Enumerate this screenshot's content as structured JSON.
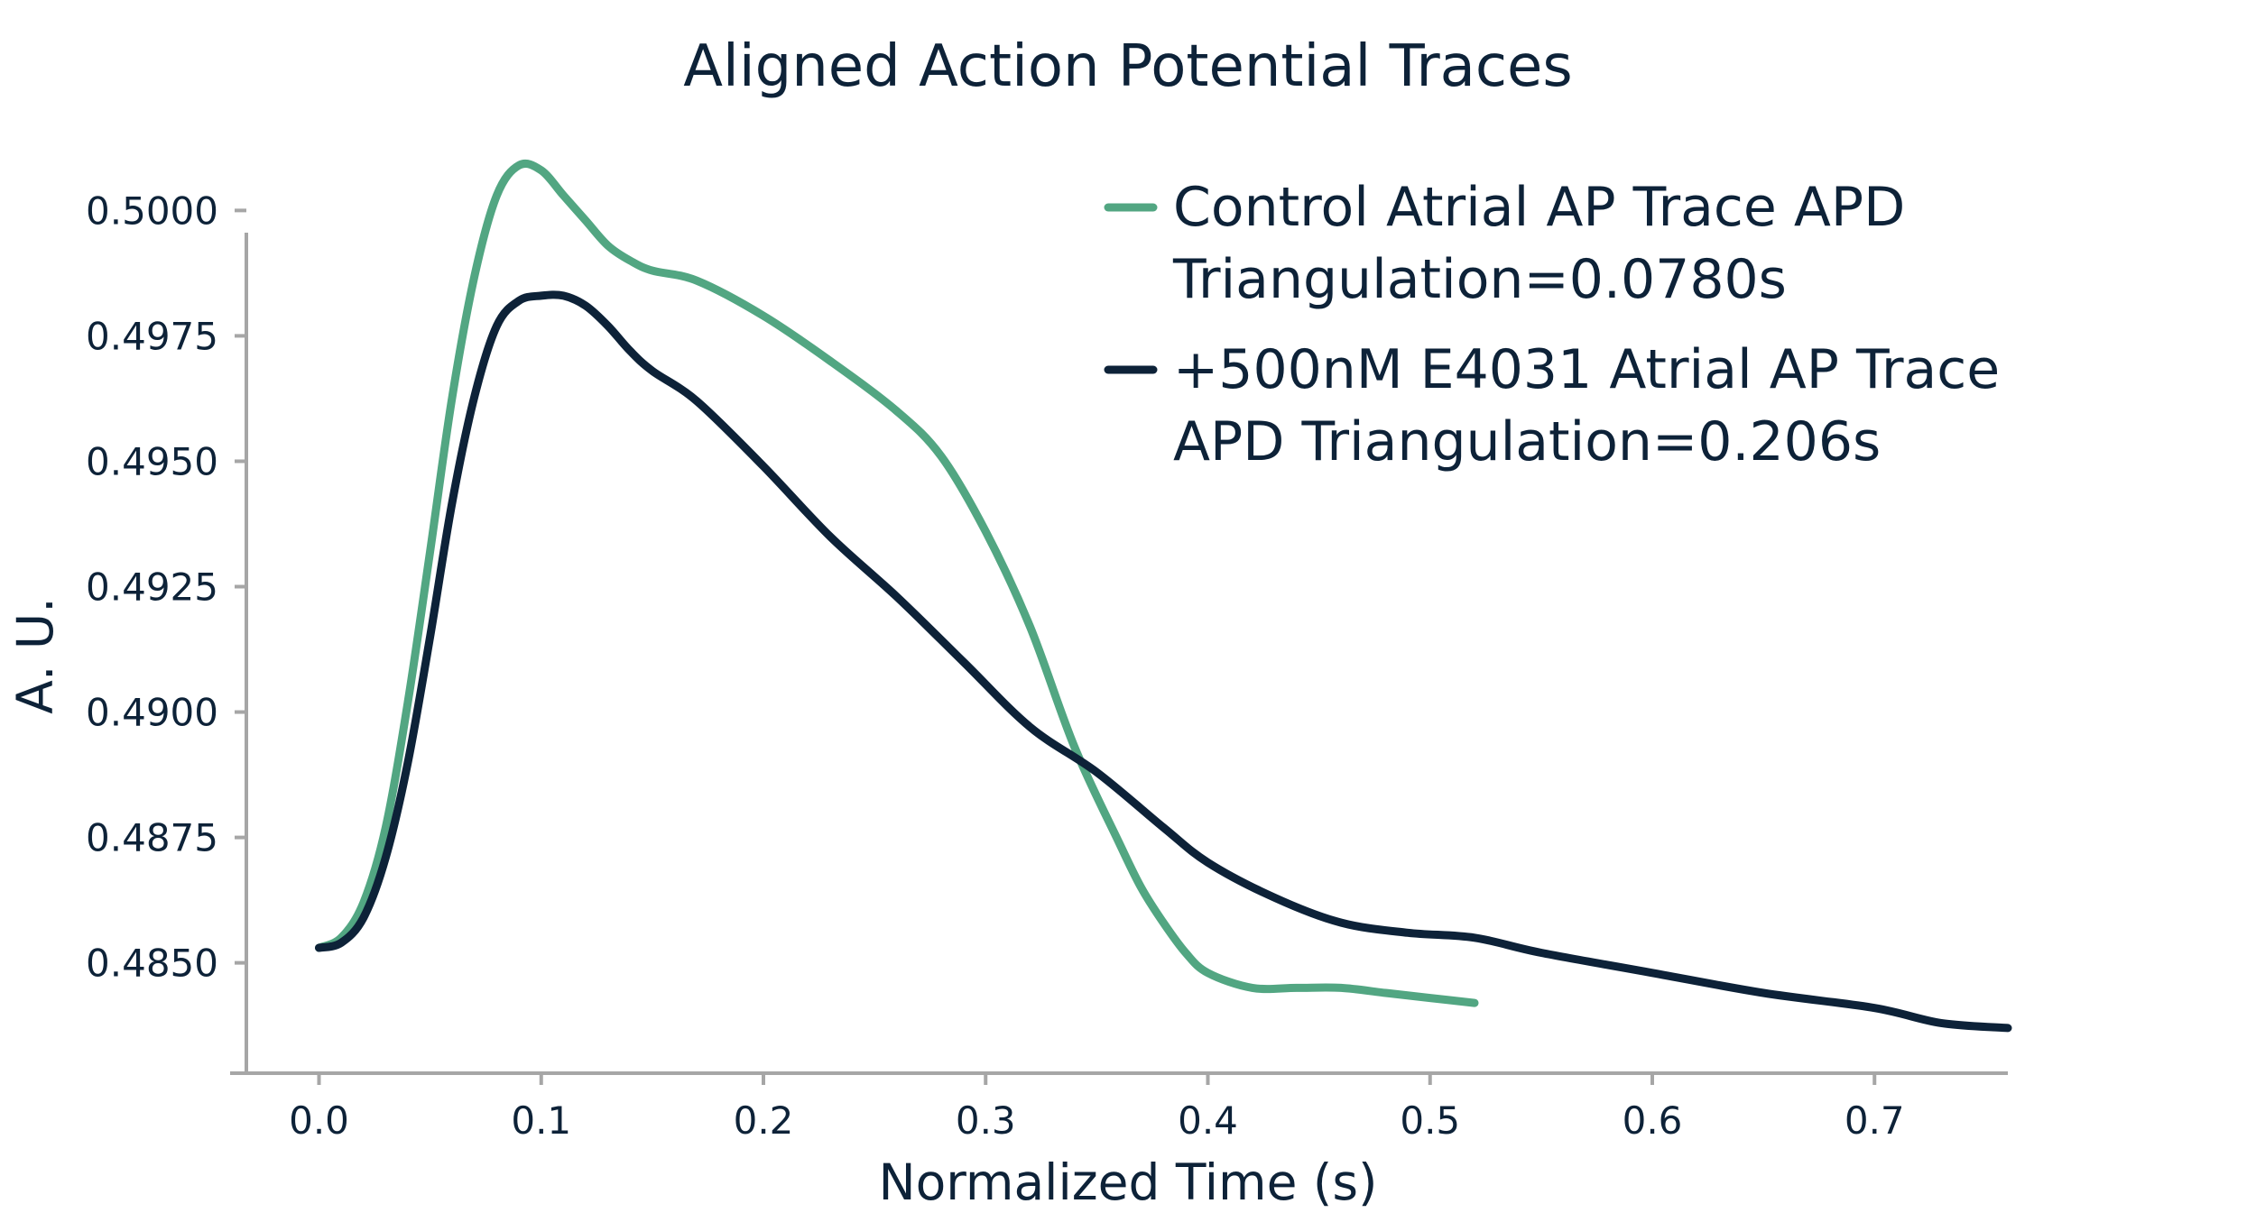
{
  "chart_data": {
    "type": "line",
    "title": "Aligned Action Potential Traces",
    "xlabel": "Normalized Time (s)",
    "ylabel": "A. U.",
    "xlim": [
      -0.04,
      0.76
    ],
    "ylim": [
      0.4828,
      0.5006
    ],
    "xticks": [
      0.0,
      0.1,
      0.2,
      0.3,
      0.4,
      0.5,
      0.6,
      0.7
    ],
    "xtick_labels": [
      "0.0",
      "0.1",
      "0.2",
      "0.3",
      "0.4",
      "0.5",
      "0.6",
      "0.7"
    ],
    "yticks": [
      0.485,
      0.4875,
      0.49,
      0.4925,
      0.495,
      0.4975,
      0.5
    ],
    "ytick_labels": [
      "0.4850",
      "0.4875",
      "0.4900",
      "0.4925",
      "0.4950",
      "0.4975",
      "0.5000"
    ],
    "legend_position": "top-right",
    "grid": false,
    "series": [
      {
        "name": "Control Atrial AP Trace APD Triangulation=0.0780s",
        "legend_lines": [
          "Control Atrial AP Trace APD",
          "Triangulation=0.0780s"
        ],
        "color": "#52a682",
        "x": [
          0.0,
          0.01,
          0.02,
          0.03,
          0.04,
          0.05,
          0.06,
          0.07,
          0.08,
          0.09,
          0.1,
          0.11,
          0.12,
          0.13,
          0.14,
          0.15,
          0.17,
          0.2,
          0.23,
          0.26,
          0.28,
          0.3,
          0.32,
          0.34,
          0.36,
          0.37,
          0.38,
          0.39,
          0.4,
          0.42,
          0.44,
          0.46,
          0.48,
          0.5,
          0.52
        ],
        "y": [
          0.4853,
          0.4855,
          0.4862,
          0.4877,
          0.4902,
          0.4932,
          0.4963,
          0.4987,
          0.5003,
          0.5009,
          0.5008,
          0.5003,
          0.4998,
          0.4993,
          0.499,
          0.4988,
          0.4986,
          0.4979,
          0.497,
          0.496,
          0.4951,
          0.4936,
          0.4917,
          0.4893,
          0.4874,
          0.4865,
          0.4858,
          0.4852,
          0.4848,
          0.4845,
          0.4845,
          0.4845,
          0.4844,
          0.4843,
          0.4842
        ]
      },
      {
        "name": "+500nM E4031 Atrial AP Trace APD Triangulation=0.206s",
        "legend_lines": [
          "+500nM E4031 Atrial AP Trace",
          "APD Triangulation=0.206s"
        ],
        "color": "#0d2238",
        "x": [
          0.0,
          0.01,
          0.02,
          0.03,
          0.04,
          0.05,
          0.06,
          0.07,
          0.08,
          0.09,
          0.1,
          0.11,
          0.12,
          0.13,
          0.14,
          0.15,
          0.17,
          0.2,
          0.23,
          0.26,
          0.29,
          0.32,
          0.35,
          0.38,
          0.4,
          0.43,
          0.46,
          0.49,
          0.52,
          0.55,
          0.6,
          0.65,
          0.7,
          0.73,
          0.76
        ],
        "y": [
          0.4853,
          0.4854,
          0.4859,
          0.4871,
          0.489,
          0.4915,
          0.4942,
          0.4963,
          0.4977,
          0.4982,
          0.4983,
          0.4983,
          0.4981,
          0.4977,
          0.4972,
          0.4968,
          0.4962,
          0.4949,
          0.4935,
          0.4923,
          0.491,
          0.4897,
          0.4888,
          0.4877,
          0.487,
          0.4863,
          0.4858,
          0.4856,
          0.4855,
          0.4852,
          0.4848,
          0.4844,
          0.4841,
          0.4838,
          0.4837
        ]
      }
    ]
  }
}
